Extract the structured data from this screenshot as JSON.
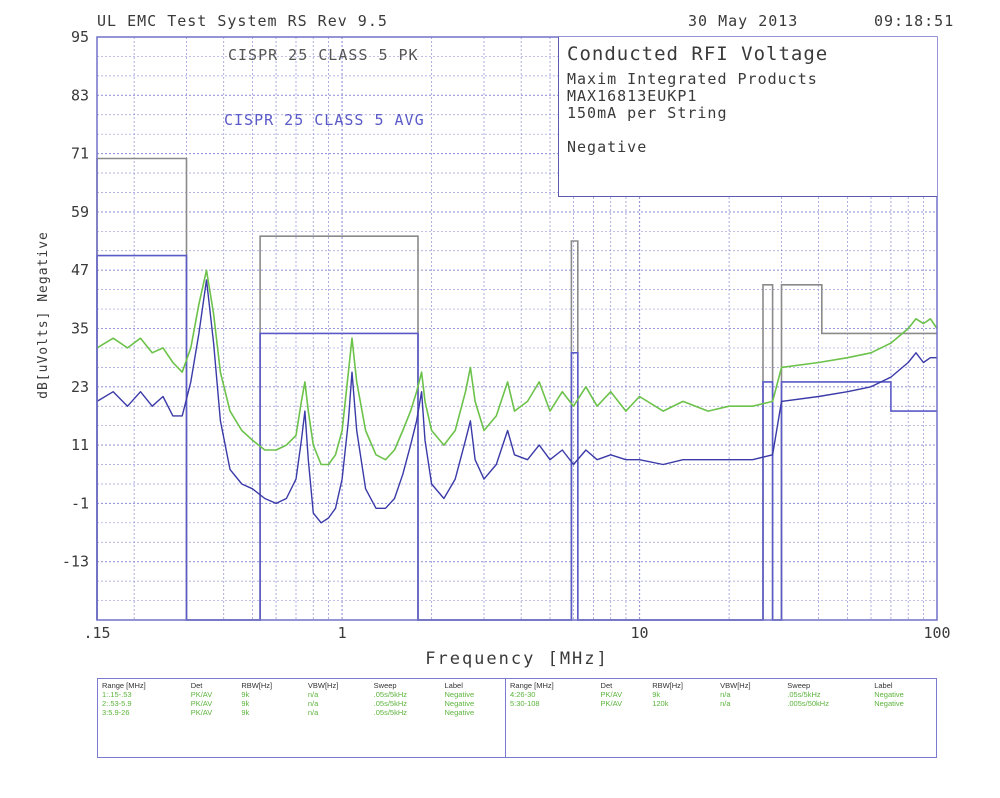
{
  "header": {
    "system": "UL EMC Test System RS Rev 9.5",
    "date": "30 May 2013",
    "time": "09:18:51"
  },
  "info_box": {
    "title": "Conducted RFI Voltage",
    "lines": [
      "Maxim Integrated Products",
      "MAX16813EUKP1",
      "150mA per String"
    ],
    "polarity": "Negative"
  },
  "chart_data": {
    "type": "line",
    "xscale": "log",
    "xlim": [
      0.15,
      100
    ],
    "ylim": [
      -25,
      95
    ],
    "xlabel": "Frequency [MHz]",
    "ylabel": "dB[uVolts] Negative",
    "x_tick_labels": [
      ".15",
      "1",
      "10",
      "100"
    ],
    "x_ticks": [
      0.15,
      1,
      10,
      100
    ],
    "y_ticks": [
      95,
      83,
      71,
      59,
      47,
      35,
      23,
      11,
      -1,
      -13
    ],
    "y_tick_labels": [
      "95",
      "83",
      "71",
      "59",
      "47",
      "35",
      "23",
      "11",
      "-1",
      "-13"
    ],
    "grid": true,
    "colors": {
      "peak": "#6cc24a",
      "average": "#3a3aa8",
      "pk_limit": "#8a8a8a",
      "avg_limit": "#5a5ac8",
      "frame": "#7070c8"
    },
    "limit_labels": {
      "pk": "CISPR 25 CLASS 5 PK",
      "avg": "CISPR 25 CLASS 5 AVG"
    },
    "pk_limit": [
      [
        0.15,
        -25
      ],
      [
        0.15,
        70
      ],
      [
        0.3,
        70
      ],
      [
        0.3,
        -25
      ],
      [
        0.53,
        -25
      ],
      [
        0.53,
        54
      ],
      [
        1.8,
        54
      ],
      [
        1.8,
        -25
      ],
      [
        5.9,
        -25
      ],
      [
        5.9,
        53
      ],
      [
        6.2,
        53
      ],
      [
        6.2,
        -25
      ],
      [
        26,
        -25
      ],
      [
        26,
        44
      ],
      [
        28,
        44
      ],
      [
        28,
        -25
      ],
      [
        30,
        -25
      ],
      [
        30,
        44
      ],
      [
        41,
        44
      ],
      [
        41,
        34
      ],
      [
        100,
        34
      ]
    ],
    "avg_limit": [
      [
        0.15,
        -25
      ],
      [
        0.15,
        50
      ],
      [
        0.3,
        50
      ],
      [
        0.3,
        -25
      ],
      [
        0.53,
        -25
      ],
      [
        0.53,
        34
      ],
      [
        1.8,
        34
      ],
      [
        1.8,
        -25
      ],
      [
        5.9,
        -25
      ],
      [
        5.9,
        30
      ],
      [
        6.2,
        30
      ],
      [
        6.2,
        -25
      ],
      [
        26,
        -25
      ],
      [
        26,
        24
      ],
      [
        28,
        24
      ],
      [
        28,
        -25
      ],
      [
        30,
        -25
      ],
      [
        30,
        24
      ],
      [
        70,
        24
      ],
      [
        70,
        18
      ],
      [
        100,
        18
      ]
    ],
    "series": [
      {
        "name": "Peak",
        "values": [
          [
            0.15,
            31
          ],
          [
            0.17,
            33
          ],
          [
            0.19,
            31
          ],
          [
            0.21,
            33
          ],
          [
            0.23,
            30
          ],
          [
            0.25,
            31
          ],
          [
            0.27,
            28
          ],
          [
            0.29,
            26
          ],
          [
            0.31,
            31
          ],
          [
            0.33,
            40
          ],
          [
            0.35,
            47
          ],
          [
            0.37,
            38
          ],
          [
            0.39,
            26
          ],
          [
            0.42,
            18
          ],
          [
            0.46,
            14
          ],
          [
            0.5,
            12
          ],
          [
            0.55,
            10
          ],
          [
            0.6,
            10
          ],
          [
            0.65,
            11
          ],
          [
            0.7,
            13
          ],
          [
            0.73,
            20
          ],
          [
            0.75,
            24
          ],
          [
            0.77,
            18
          ],
          [
            0.8,
            11
          ],
          [
            0.85,
            7
          ],
          [
            0.9,
            7
          ],
          [
            0.95,
            9
          ],
          [
            1.0,
            14
          ],
          [
            1.05,
            26
          ],
          [
            1.08,
            33
          ],
          [
            1.12,
            24
          ],
          [
            1.2,
            14
          ],
          [
            1.3,
            9
          ],
          [
            1.4,
            8
          ],
          [
            1.5,
            10
          ],
          [
            1.6,
            14
          ],
          [
            1.7,
            18
          ],
          [
            1.78,
            22
          ],
          [
            1.85,
            26
          ],
          [
            1.9,
            20
          ],
          [
            2.0,
            14
          ],
          [
            2.2,
            11
          ],
          [
            2.4,
            14
          ],
          [
            2.6,
            22
          ],
          [
            2.7,
            27
          ],
          [
            2.8,
            20
          ],
          [
            3.0,
            14
          ],
          [
            3.3,
            17
          ],
          [
            3.6,
            24
          ],
          [
            3.8,
            18
          ],
          [
            4.2,
            20
          ],
          [
            4.6,
            24
          ],
          [
            5.0,
            18
          ],
          [
            5.5,
            22
          ],
          [
            6.0,
            19
          ],
          [
            6.6,
            23
          ],
          [
            7.2,
            19
          ],
          [
            8.0,
            22
          ],
          [
            9.0,
            18
          ],
          [
            10,
            21
          ],
          [
            12,
            18
          ],
          [
            14,
            20
          ],
          [
            17,
            18
          ],
          [
            20,
            19
          ],
          [
            24,
            19
          ],
          [
            28,
            20
          ],
          [
            30,
            27
          ],
          [
            40,
            28
          ],
          [
            50,
            29
          ],
          [
            60,
            30
          ],
          [
            70,
            32
          ],
          [
            80,
            35
          ],
          [
            85,
            37
          ],
          [
            90,
            36
          ],
          [
            95,
            37
          ],
          [
            100,
            35
          ]
        ]
      },
      {
        "name": "Average",
        "values": [
          [
            0.15,
            20
          ],
          [
            0.17,
            22
          ],
          [
            0.19,
            19
          ],
          [
            0.21,
            22
          ],
          [
            0.23,
            19
          ],
          [
            0.25,
            21
          ],
          [
            0.27,
            17
          ],
          [
            0.29,
            17
          ],
          [
            0.31,
            24
          ],
          [
            0.33,
            34
          ],
          [
            0.35,
            45
          ],
          [
            0.37,
            32
          ],
          [
            0.39,
            16
          ],
          [
            0.42,
            6
          ],
          [
            0.46,
            3
          ],
          [
            0.5,
            2
          ],
          [
            0.55,
            0
          ],
          [
            0.6,
            -1
          ],
          [
            0.65,
            0
          ],
          [
            0.7,
            4
          ],
          [
            0.73,
            12
          ],
          [
            0.75,
            18
          ],
          [
            0.77,
            8
          ],
          [
            0.8,
            -3
          ],
          [
            0.85,
            -5
          ],
          [
            0.9,
            -4
          ],
          [
            0.95,
            -2
          ],
          [
            1.0,
            4
          ],
          [
            1.05,
            16
          ],
          [
            1.08,
            26
          ],
          [
            1.12,
            14
          ],
          [
            1.2,
            2
          ],
          [
            1.3,
            -2
          ],
          [
            1.4,
            -2
          ],
          [
            1.5,
            0
          ],
          [
            1.6,
            5
          ],
          [
            1.7,
            11
          ],
          [
            1.78,
            16
          ],
          [
            1.85,
            22
          ],
          [
            1.9,
            12
          ],
          [
            2.0,
            3
          ],
          [
            2.2,
            0
          ],
          [
            2.4,
            4
          ],
          [
            2.6,
            12
          ],
          [
            2.7,
            16
          ],
          [
            2.8,
            8
          ],
          [
            3.0,
            4
          ],
          [
            3.3,
            7
          ],
          [
            3.6,
            14
          ],
          [
            3.8,
            9
          ],
          [
            4.2,
            8
          ],
          [
            4.6,
            11
          ],
          [
            5.0,
            8
          ],
          [
            5.5,
            10
          ],
          [
            6.0,
            7
          ],
          [
            6.6,
            10
          ],
          [
            7.2,
            8
          ],
          [
            8.0,
            9
          ],
          [
            9.0,
            8
          ],
          [
            10,
            8
          ],
          [
            12,
            7
          ],
          [
            14,
            8
          ],
          [
            17,
            8
          ],
          [
            20,
            8
          ],
          [
            24,
            8
          ],
          [
            28,
            9
          ],
          [
            30,
            20
          ],
          [
            40,
            21
          ],
          [
            50,
            22
          ],
          [
            60,
            23
          ],
          [
            70,
            25
          ],
          [
            80,
            28
          ],
          [
            85,
            30
          ],
          [
            90,
            28
          ],
          [
            95,
            29
          ],
          [
            100,
            29
          ]
        ]
      }
    ]
  },
  "legend_table": {
    "headers": [
      "Range [MHz]",
      "Det",
      "RBW[Hz]",
      "VBW[Hz]",
      "Sweep",
      "Label"
    ],
    "left_rows": [
      [
        "1:.15-.53",
        "PK/AV",
        "9k",
        "n/a",
        ".05s/5kHz",
        "Negative"
      ],
      [
        "2:.53-5.9",
        "PK/AV",
        "9k",
        "n/a",
        ".05s/5kHz",
        "Negative"
      ],
      [
        "3:5.9-26",
        "PK/AV",
        "9k",
        "n/a",
        ".05s/5kHz",
        "Negative"
      ]
    ],
    "right_rows": [
      [
        "4:26-30",
        "PK/AV",
        "9k",
        "n/a",
        ".05s/5kHz",
        "Negative"
      ],
      [
        "5:30-108",
        "PK/AV",
        "120k",
        "n/a",
        ".005s/50kHz",
        "Negative"
      ]
    ]
  }
}
